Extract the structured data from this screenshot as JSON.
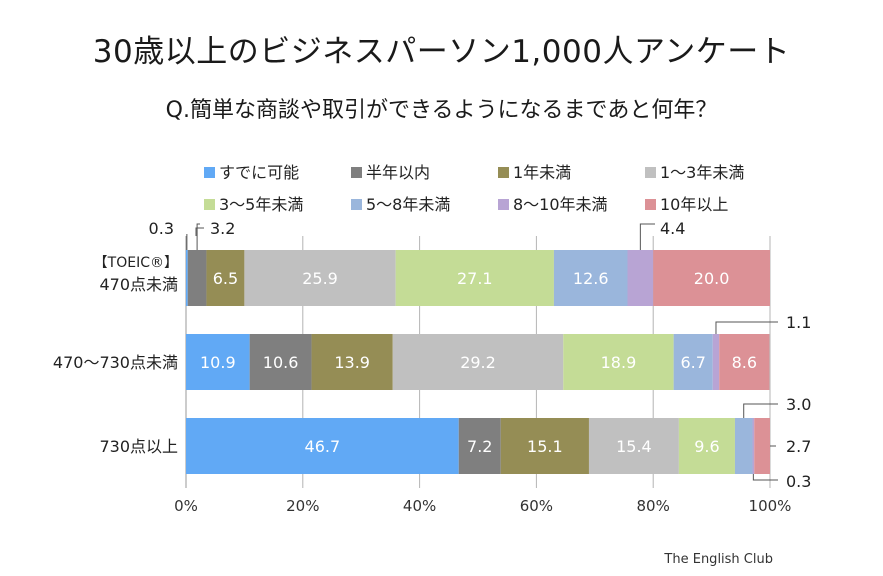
{
  "title": "30歳以上のビジネスパーソン1,000人アンケート",
  "subtitle": "Q.簡単な商談や取引ができるようになるまであと何年？",
  "source": "The English Club",
  "chart_data": {
    "type": "bar",
    "orientation": "horizontal",
    "stacked": true,
    "legend_position": "top",
    "grid": true,
    "xlim": [
      0,
      100
    ],
    "x_ticks": [
      "0%",
      "20%",
      "40%",
      "60%",
      "80%",
      "100%"
    ],
    "categories": [
      [
        "【TOEIC®】",
        "470点未満"
      ],
      [
        "470～730点未満"
      ],
      [
        "730点以上"
      ]
    ],
    "series": [
      {
        "name": "すでに可能",
        "color": "#61a9f5",
        "values": [
          0.3,
          10.9,
          46.7
        ]
      },
      {
        "name": "半年以内",
        "color": "#7f7f7f",
        "values": [
          3.2,
          10.6,
          7.2
        ]
      },
      {
        "name": "1年未満",
        "color": "#958d55",
        "values": [
          6.5,
          13.9,
          15.1
        ]
      },
      {
        "name": "1～3年未満",
        "color": "#c0c0c0",
        "values": [
          25.9,
          29.2,
          15.4
        ]
      },
      {
        "name": "3～5年未満",
        "color": "#c4dc96",
        "values": [
          27.1,
          18.9,
          9.6
        ]
      },
      {
        "name": "5～8年未満",
        "color": "#9ab6dc",
        "values": [
          12.6,
          6.7,
          3.0
        ]
      },
      {
        "name": "8～10年未満",
        "color": "#b8a4d4",
        "values": [
          4.4,
          1.1,
          0.3
        ]
      },
      {
        "name": "10年以上",
        "color": "#dc9196",
        "values": [
          20.0,
          8.6,
          2.7
        ]
      }
    ],
    "data_labels": [
      [
        "0.3",
        "3.2",
        "6.5",
        "25.9",
        "27.1",
        "12.6",
        "4.4",
        "20.0"
      ],
      [
        "10.9",
        "10.6",
        "13.9",
        "29.2",
        "18.9",
        "6.7",
        "1.1",
        "8.6"
      ],
      [
        "46.7",
        "7.2",
        "15.1",
        "15.4",
        "9.6",
        "3.0",
        "0.3",
        "2.7"
      ]
    ]
  }
}
